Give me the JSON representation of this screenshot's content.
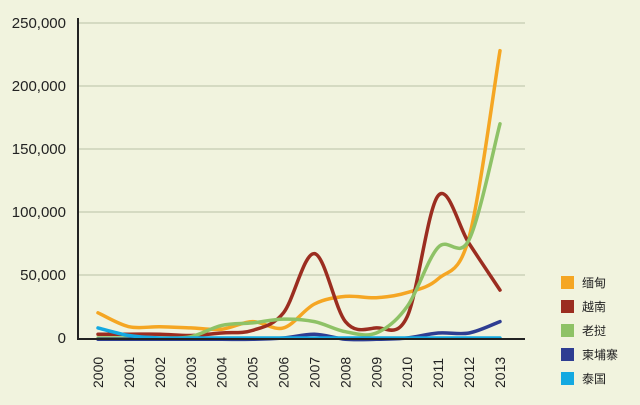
{
  "chart_data": {
    "type": "line",
    "title": "",
    "xlabel": "",
    "ylabel": "",
    "x": [
      "2000",
      "2001",
      "2002",
      "2003",
      "2004",
      "2005",
      "2006",
      "2007",
      "2008",
      "2009",
      "2010",
      "2011",
      "2012",
      "2013"
    ],
    "y_ticks": [
      "0",
      "50,000",
      "100,000",
      "150,000",
      "200,000",
      "250,000"
    ],
    "ylim": [
      0,
      250000
    ],
    "grid": true,
    "legend_position": "right",
    "colors": {
      "background": "#f1f3de",
      "gridline": "#b9c0a5",
      "axis": "#222222"
    },
    "series": [
      {
        "name": "缅甸",
        "color": "#f5a623",
        "values": [
          20000,
          9000,
          9000,
          8000,
          7000,
          13000,
          8000,
          27000,
          33000,
          32000,
          36000,
          47000,
          80000,
          228000
        ]
      },
      {
        "name": "越南",
        "color": "#9b2d20",
        "values": [
          3000,
          3000,
          3000,
          2000,
          4000,
          6000,
          20000,
          67000,
          13000,
          8000,
          17000,
          113000,
          75000,
          38000
        ]
      },
      {
        "name": "老挝",
        "color": "#8ec266",
        "values": [
          0,
          0,
          0,
          1000,
          10000,
          12000,
          15000,
          13000,
          5000,
          4000,
          25000,
          72000,
          78000,
          170000
        ]
      },
      {
        "name": "柬埔寨",
        "color": "#2e3d92",
        "values": [
          -1000,
          -1000,
          -1000,
          -1000,
          -1000,
          -1000,
          0,
          3000,
          -1000,
          -1000,
          0,
          4000,
          4000,
          13000
        ]
      },
      {
        "name": "泰国",
        "color": "#14a9e1",
        "values": [
          8000,
          2000,
          0,
          0,
          0,
          0,
          0,
          0,
          0,
          0,
          0,
          0,
          0,
          0
        ]
      }
    ]
  }
}
